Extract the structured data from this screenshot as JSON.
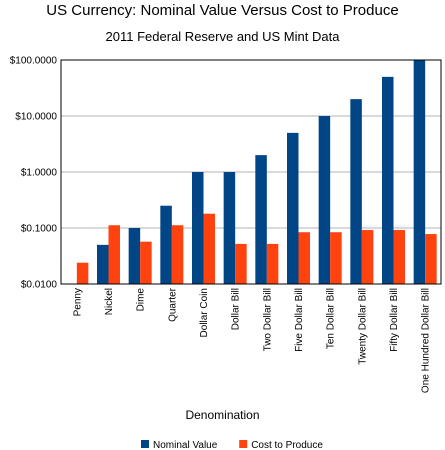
{
  "chart_data": {
    "type": "bar",
    "title": "US Currency: Nominal Value Versus Cost to Produce",
    "subtitle": "2011 Federal Reserve and US Mint Data",
    "xlabel": "Denomination",
    "ylabel": "",
    "yscale": "log",
    "ylim": [
      0.01,
      100
    ],
    "yticks": [
      0.01,
      0.1,
      1,
      10,
      100
    ],
    "ytick_labels": [
      "$0.0100",
      "$0.1000",
      "$1.0000",
      "$10.0000",
      "$100.0000"
    ],
    "grid": true,
    "legend_position": "bottom",
    "categories": [
      "Penny",
      "Nickel",
      "Dime",
      "Quarter",
      "Dollar Coin",
      "Dollar Bill",
      "Two Dollar Bill",
      "Five Dollar Bill",
      "Ten Dollar Bill",
      "Twenty Dollar Bill",
      "Fifty Dollar Bill",
      "One Hundred Dollar Bill"
    ],
    "series": [
      {
        "name": "Nominal Value",
        "color": "#004586",
        "values": [
          0.01,
          0.05,
          0.1,
          0.25,
          1,
          1,
          2,
          5,
          10,
          20,
          50,
          100
        ]
      },
      {
        "name": "Cost to Produce",
        "color": "#ff420e",
        "values": [
          0.024,
          0.112,
          0.057,
          0.112,
          0.18,
          0.052,
          0.052,
          0.084,
          0.084,
          0.092,
          0.092,
          0.078
        ]
      }
    ]
  }
}
